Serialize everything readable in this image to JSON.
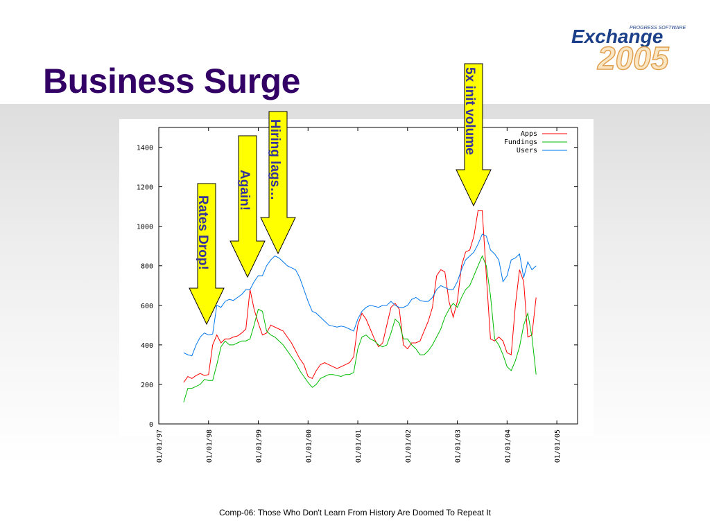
{
  "slide": {
    "title": "Business Surge",
    "footer": "Comp-06: Those Who Don't Learn From History Are Doomed To Repeat It",
    "logo": {
      "top_text": "PROGRESS SOFTWARE",
      "name": "Exchange",
      "year": "2005"
    }
  },
  "colors": {
    "title": "#330066",
    "arrow_fill": "#ffff00",
    "arrow_text": "#333399",
    "apps": "#ff0000",
    "fundings": "#00bb00",
    "users": "#0077ee"
  },
  "chart_data": {
    "type": "line",
    "title": "",
    "xlabel": "",
    "ylabel": "",
    "ylim": [
      0,
      1500
    ],
    "yticks": [
      "0",
      "200",
      "400",
      "600",
      "800",
      "1000",
      "1200",
      "1400"
    ],
    "xlim": [
      "1997-01-01",
      "2005-06-01"
    ],
    "xticks": [
      "01/01/97",
      "01/01/98",
      "01/01/99",
      "01/01/00",
      "01/01/01",
      "01/01/02",
      "01/01/03",
      "01/01/04",
      "01/01/05"
    ],
    "grid": false,
    "legend": "top-right",
    "x": [
      "1997-07",
      "1997-08",
      "1997-09",
      "1997-10",
      "1997-11",
      "1997-12",
      "1998-01",
      "1998-02",
      "1998-03",
      "1998-04",
      "1998-05",
      "1998-06",
      "1998-07",
      "1998-08",
      "1998-09",
      "1998-10",
      "1998-11",
      "1998-12",
      "1999-01",
      "1999-02",
      "1999-03",
      "1999-04",
      "1999-05",
      "1999-06",
      "1999-07",
      "1999-08",
      "1999-09",
      "1999-10",
      "1999-11",
      "1999-12",
      "2000-01",
      "2000-02",
      "2000-03",
      "2000-04",
      "2000-05",
      "2000-06",
      "2000-07",
      "2000-08",
      "2000-09",
      "2000-10",
      "2000-11",
      "2000-12",
      "2001-01",
      "2001-02",
      "2001-03",
      "2001-04",
      "2001-05",
      "2001-06",
      "2001-07",
      "2001-08",
      "2001-09",
      "2001-10",
      "2001-11",
      "2001-12",
      "2002-01",
      "2002-02",
      "2002-03",
      "2002-04",
      "2002-05",
      "2002-06",
      "2002-07",
      "2002-08",
      "2002-09",
      "2002-10",
      "2002-11",
      "2002-12",
      "2003-01",
      "2003-02",
      "2003-03",
      "2003-04",
      "2003-05",
      "2003-06",
      "2003-07",
      "2003-08",
      "2003-09",
      "2003-10",
      "2003-11",
      "2003-12",
      "2004-01",
      "2004-02",
      "2004-03",
      "2004-04",
      "2004-05",
      "2004-06",
      "2004-07",
      "2004-08"
    ],
    "series": [
      {
        "name": "Apps",
        "color": "#ff0000",
        "values": [
          210,
          240,
          230,
          245,
          255,
          245,
          250,
          400,
          450,
          410,
          430,
          430,
          440,
          445,
          460,
          480,
          680,
          580,
          510,
          450,
          460,
          500,
          490,
          480,
          470,
          440,
          410,
          370,
          330,
          300,
          240,
          230,
          270,
          300,
          310,
          300,
          290,
          280,
          290,
          300,
          310,
          340,
          500,
          560,
          530,
          480,
          430,
          390,
          410,
          500,
          590,
          610,
          580,
          400,
          380,
          410,
          410,
          420,
          470,
          520,
          590,
          750,
          780,
          770,
          620,
          540,
          620,
          800,
          870,
          880,
          950,
          1080,
          1080,
          750,
          430,
          420,
          440,
          420,
          360,
          350,
          600,
          780,
          720,
          440,
          450,
          640
        ]
      },
      {
        "name": "Fundings",
        "color": "#00bb00",
        "values": [
          110,
          180,
          180,
          190,
          200,
          225,
          220,
          220,
          300,
          390,
          420,
          400,
          400,
          410,
          420,
          420,
          430,
          500,
          580,
          570,
          470,
          450,
          440,
          420,
          400,
          370,
          340,
          310,
          270,
          240,
          210,
          185,
          200,
          230,
          240,
          250,
          250,
          245,
          240,
          250,
          250,
          260,
          380,
          440,
          450,
          430,
          420,
          400,
          390,
          400,
          460,
          530,
          510,
          430,
          430,
          400,
          380,
          350,
          350,
          370,
          400,
          440,
          480,
          540,
          580,
          610,
          590,
          640,
          680,
          700,
          750,
          800,
          850,
          800,
          650,
          430,
          400,
          350,
          290,
          270,
          320,
          390,
          500,
          560,
          440,
          250
        ]
      },
      {
        "name": "Users",
        "color": "#0077ee",
        "values": [
          360,
          350,
          345,
          400,
          440,
          460,
          450,
          455,
          600,
          590,
          620,
          630,
          625,
          640,
          655,
          680,
          680,
          720,
          750,
          750,
          800,
          830,
          850,
          840,
          820,
          800,
          790,
          780,
          740,
          680,
          620,
          570,
          560,
          540,
          520,
          500,
          495,
          490,
          495,
          490,
          480,
          470,
          530,
          570,
          590,
          600,
          595,
          590,
          600,
          600,
          620,
          600,
          590,
          590,
          600,
          630,
          640,
          625,
          620,
          620,
          640,
          680,
          700,
          690,
          680,
          680,
          720,
          780,
          830,
          850,
          870,
          910,
          960,
          950,
          880,
          860,
          830,
          720,
          750,
          830,
          840,
          860,
          740,
          820,
          780,
          800
        ]
      }
    ],
    "annotations": [
      {
        "text": "Rates Drop!",
        "date": "1997-12"
      },
      {
        "text": "Again!",
        "date": "1998-10"
      },
      {
        "text": "Hiring lags…",
        "date": "1999-05"
      },
      {
        "text": "5x init volume",
        "date": "2003-03"
      }
    ]
  }
}
